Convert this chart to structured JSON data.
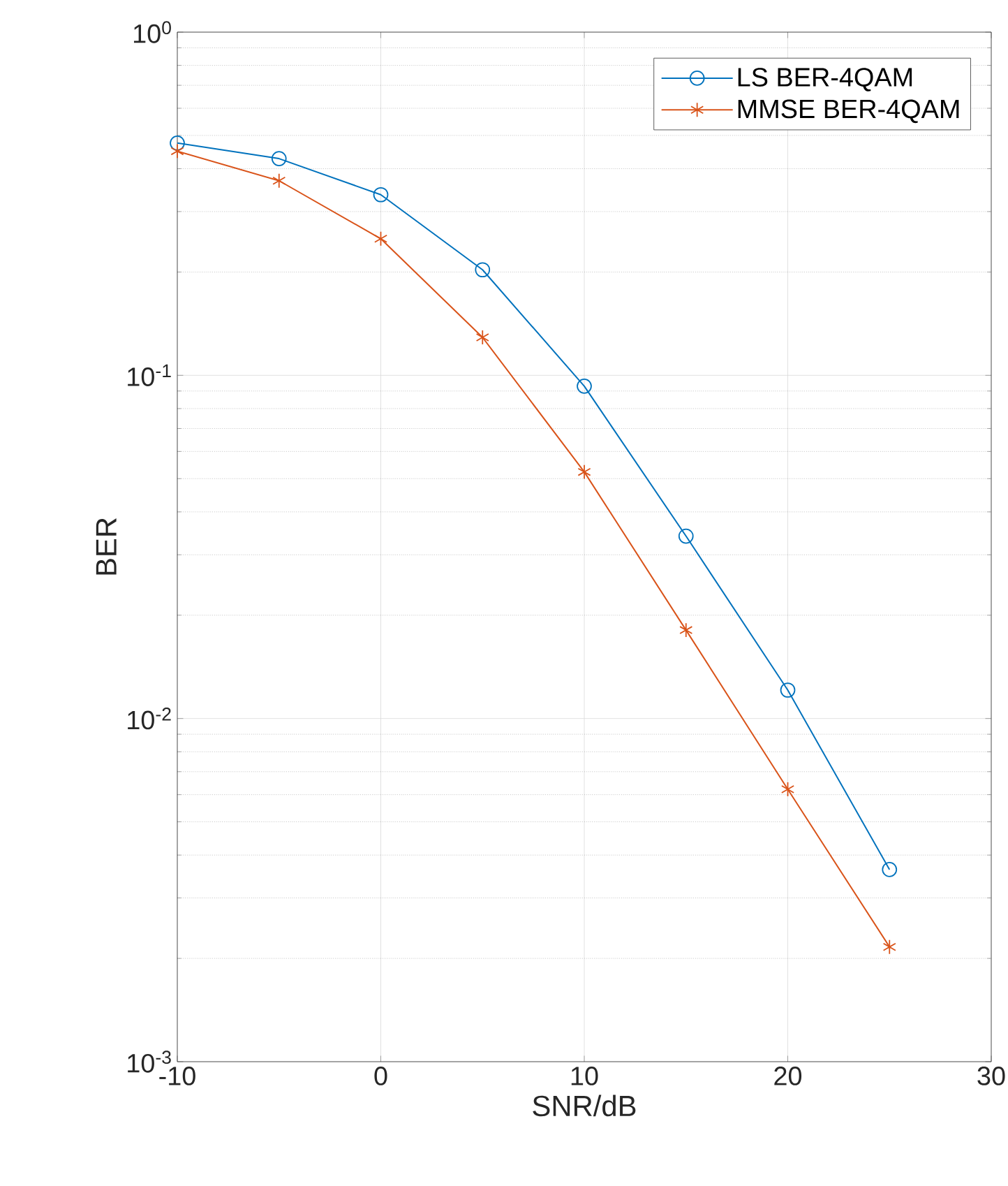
{
  "chart_data": {
    "type": "line",
    "xlabel": "SNR/dB",
    "ylabel": "BER",
    "x": [
      -10,
      -5,
      0,
      5,
      10,
      15,
      20,
      25
    ],
    "series": [
      {
        "name": "LS BER-4QAM",
        "color": "#0072bd",
        "marker": "circle",
        "values": [
          0.475,
          0.428,
          0.336,
          0.203,
          0.093,
          0.034,
          0.0121,
          0.00363
        ]
      },
      {
        "name": "MMSE BER-4QAM",
        "color": "#d95319",
        "marker": "cross",
        "values": [
          0.45,
          0.369,
          0.25,
          0.129,
          0.0523,
          0.0181,
          0.00622,
          0.00216
        ]
      }
    ],
    "log": "y",
    "xlim": [
      -10,
      30
    ],
    "ylim": [
      0.001,
      1
    ],
    "xticks": [
      -10,
      0,
      10,
      20,
      30
    ],
    "yticks": [
      {
        "value": 0.001,
        "label": "10$^{-3}$"
      },
      {
        "value": 0.01,
        "label": "10$^{-2}$"
      },
      {
        "value": 0.1,
        "label": "10$^{-1}$"
      },
      {
        "value": 1,
        "label": "10$^{0}$"
      }
    ],
    "grid": true,
    "legend": "top right",
    "line_style": "solid"
  }
}
